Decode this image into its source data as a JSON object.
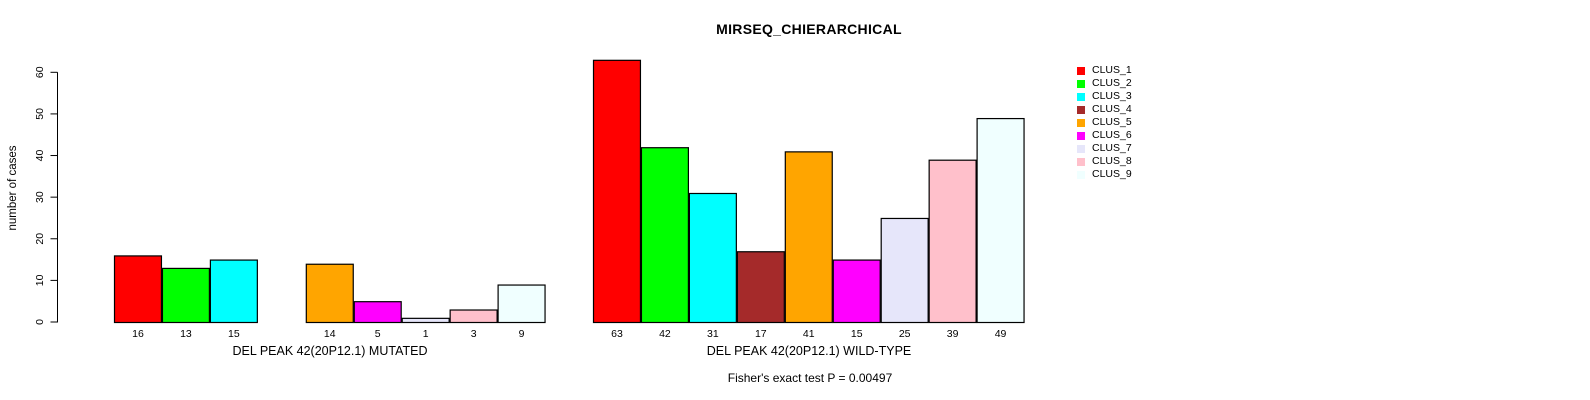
{
  "chart_data": {
    "type": "bar",
    "title": "MIRSEQ_CHIERARCHICAL",
    "ylabel": "number of cases",
    "ylim": [
      0,
      63
    ],
    "yticks": [
      0,
      10,
      20,
      30,
      40,
      50,
      60
    ],
    "grid": false,
    "bar_border_color": "#000000",
    "legend_position": "right",
    "clusters": [
      {
        "name": "CLUS_1",
        "color": "#FF0000"
      },
      {
        "name": "CLUS_2",
        "color": "#00FF00"
      },
      {
        "name": "CLUS_3",
        "color": "#00FFFF"
      },
      {
        "name": "CLUS_4",
        "color": "#A52A2A"
      },
      {
        "name": "CLUS_5",
        "color": "#FFA500"
      },
      {
        "name": "CLUS_6",
        "color": "#FF00FF"
      },
      {
        "name": "CLUS_7",
        "color": "#E6E6FA"
      },
      {
        "name": "CLUS_8",
        "color": "#FFC0CB"
      },
      {
        "name": "CLUS_9",
        "color": "#F0FFFF"
      }
    ],
    "groups": [
      {
        "xlabel": "DEL PEAK 42(20P12.1) MUTATED",
        "values": [
          16,
          13,
          15,
          0,
          14,
          5,
          1,
          3,
          9
        ]
      },
      {
        "xlabel": "DEL PEAK 42(20P12.1) WILD-TYPE",
        "values": [
          63,
          42,
          31,
          17,
          41,
          15,
          25,
          39,
          49
        ]
      }
    ],
    "annotation": "Fisher's exact test P = 0.00497"
  }
}
